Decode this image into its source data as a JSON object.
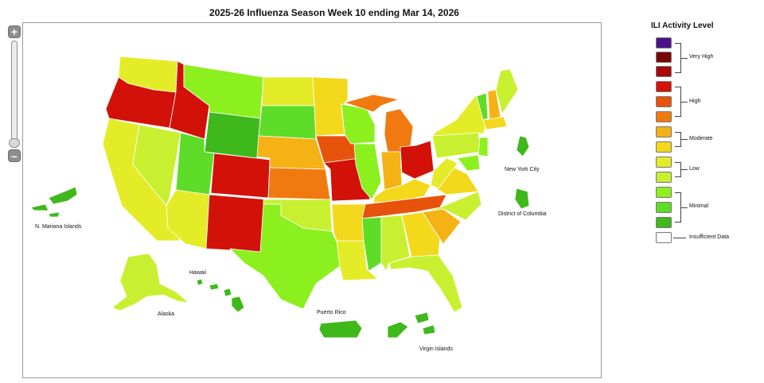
{
  "title": "2025-26 Influenza Season Week 10 ending Mar 14, 2026",
  "colors": {
    "level_1": "#3fb81c",
    "level_2": "#5fdc27",
    "level_3": "#8cf01e",
    "level_4": "#c8f030",
    "level_5": "#e4ec28",
    "level_6": "#f3d81c",
    "level_7": "#f4b214",
    "level_8": "#f07a10",
    "level_9": "#e8530c",
    "level_10": "#d21208",
    "level_11": "#a80808",
    "level_12": "#780606",
    "level_13": "#4a148c",
    "insufficient": "#ffffff"
  },
  "zoom": {
    "in_symbol": "+",
    "out_symbol": "–"
  },
  "legend": {
    "title": "ILI Activity Level",
    "groups": {
      "very_high": "Very High",
      "high": "High",
      "moderate": "Moderate",
      "low": "Low",
      "minimal": "Minimal",
      "insufficient": "Insufficient Data"
    }
  },
  "labels": {
    "mariana": "N. Mariana Islands",
    "alaska": "Alaska",
    "hawaii": "Hawaii",
    "puerto_rico": "Puerto Rico",
    "virgin_islands": "Virgin Islands",
    "nyc": "New York City",
    "dc": "District of Columbia"
  },
  "states": [
    {
      "id": "WA",
      "level": 5
    },
    {
      "id": "OR",
      "level": 10
    },
    {
      "id": "CA",
      "level": 5
    },
    {
      "id": "NV",
      "level": 4
    },
    {
      "id": "ID",
      "level": 10
    },
    {
      "id": "MT",
      "level": 3
    },
    {
      "id": "WY",
      "level": 1
    },
    {
      "id": "UT",
      "level": 2
    },
    {
      "id": "AZ",
      "level": 5
    },
    {
      "id": "CO",
      "level": 10
    },
    {
      "id": "NM",
      "level": 10
    },
    {
      "id": "ND",
      "level": 5
    },
    {
      "id": "SD",
      "level": 2
    },
    {
      "id": "NE",
      "level": 7
    },
    {
      "id": "KS",
      "level": 8
    },
    {
      "id": "OK",
      "level": 4
    },
    {
      "id": "TX",
      "level": 3
    },
    {
      "id": "MN",
      "level": 6
    },
    {
      "id": "IA",
      "level": 9
    },
    {
      "id": "MO",
      "level": 10
    },
    {
      "id": "AR",
      "level": 6
    },
    {
      "id": "LA",
      "level": 5
    },
    {
      "id": "WI",
      "level": 3
    },
    {
      "id": "IL",
      "level": 3
    },
    {
      "id": "MI",
      "level": 8
    },
    {
      "id": "IN",
      "level": 7
    },
    {
      "id": "OH",
      "level": 10
    },
    {
      "id": "KY",
      "level": 6
    },
    {
      "id": "TN",
      "level": 9
    },
    {
      "id": "MS",
      "level": 2
    },
    {
      "id": "AL",
      "level": 4
    },
    {
      "id": "GA",
      "level": 6
    },
    {
      "id": "FL",
      "level": 4
    },
    {
      "id": "SC",
      "level": 7
    },
    {
      "id": "NC",
      "level": 4
    },
    {
      "id": "VA",
      "level": 6
    },
    {
      "id": "WV",
      "level": 5
    },
    {
      "id": "PA",
      "level": 4
    },
    {
      "id": "NY",
      "level": 5
    },
    {
      "id": "VT",
      "level": 2
    },
    {
      "id": "NH",
      "level": 7
    },
    {
      "id": "ME",
      "level": 4
    },
    {
      "id": "MA",
      "level": 6
    },
    {
      "id": "NJ",
      "level": 3
    },
    {
      "id": "MD",
      "level": 3
    },
    {
      "id": "AK",
      "level": 4
    },
    {
      "id": "HI",
      "level": 1
    },
    {
      "id": "PR",
      "level": 1
    },
    {
      "id": "VI",
      "level": 1
    },
    {
      "id": "MP",
      "level": 1
    },
    {
      "id": "NYC",
      "level": 1
    },
    {
      "id": "DC",
      "level": 1
    }
  ]
}
